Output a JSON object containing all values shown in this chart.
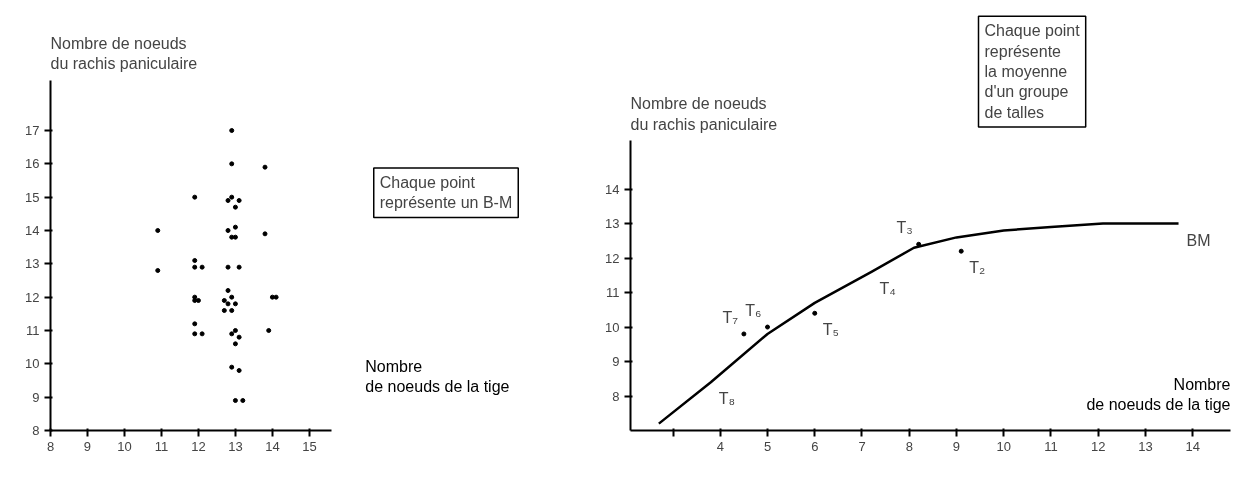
{
  "chart_data": [
    {
      "type": "scatter",
      "xlabel": "Nombre\nde noeuds de la tige",
      "ylabel": "Nombre de noeuds\ndu rachis paniculaire",
      "annotations": [
        "Chaque point\nreprésente un B-M"
      ],
      "series": [
        {
          "color": "#000000",
          "x": [
            10.9,
            10.9,
            11.9,
            11.9,
            11.9,
            12.1,
            11.9,
            11.9,
            12.0,
            11.9,
            11.9,
            12.1,
            12.9,
            12.9,
            12.8,
            12.9,
            13.1,
            13.0,
            12.8,
            13.0,
            13.0,
            12.9,
            12.8,
            13.1,
            12.8,
            12.9,
            12.7,
            12.8,
            13.0,
            12.7,
            12.9,
            13.0,
            12.9,
            13.1,
            13.0,
            12.9,
            13.1,
            13.0,
            13.2,
            13.8,
            13.8,
            14.0,
            14.1,
            13.9
          ],
          "values": [
            14.0,
            12.8,
            15.0,
            13.1,
            12.9,
            12.9,
            12.0,
            11.9,
            11.9,
            11.2,
            10.9,
            10.9,
            17.0,
            16.0,
            14.9,
            15.0,
            14.9,
            14.7,
            14.0,
            14.1,
            13.8,
            13.8,
            12.9,
            12.9,
            12.2,
            12.0,
            11.9,
            11.8,
            11.8,
            11.6,
            11.6,
            11.0,
            10.9,
            10.8,
            10.6,
            9.9,
            9.8,
            8.9,
            8.9,
            15.9,
            13.9,
            12.0,
            12.0,
            11.0
          ]
        }
      ],
      "xlim": [
        8,
        15.6
      ],
      "ylim": [
        8,
        18.5
      ],
      "xticks": [
        8,
        9,
        10,
        11,
        12,
        13,
        14,
        15
      ],
      "yticks": [
        8,
        9,
        10,
        11,
        12,
        13,
        14,
        15,
        16,
        17
      ],
      "grid": false,
      "marker": "circle"
    },
    {
      "type": "line",
      "xlabel": "Nombre\nde noeuds de la tige",
      "ylabel": "Nombre de noeuds\ndu rachis paniculaire",
      "annotations": [
        "Chaque point\nreprésente\nla moyenne\nd'un groupe\nde talles",
        {
          "text": "T₂",
          "x": 9.1,
          "y": 12.2
        },
        {
          "text": "T₃",
          "x": 8.2,
          "y": 12.4
        },
        {
          "text": "T₄",
          "x": 7.2,
          "y": 11.6
        },
        {
          "text": "T₅",
          "x": 6.0,
          "y": 10.4
        },
        {
          "text": "T₆",
          "x": 5.0,
          "y": 10.0
        },
        {
          "text": "T₇",
          "x": 4.5,
          "y": 9.8
        },
        {
          "text": "T₈",
          "x": 3.8,
          "y": 8.4
        },
        {
          "text": "BM",
          "x": 13.7,
          "y": 13.0
        }
      ],
      "series": [
        {
          "type": "line",
          "color": "#000000",
          "marker": "none",
          "x": [
            2.7,
            3.8,
            5.0,
            6.0,
            7.2,
            8.1,
            9.0,
            10.0,
            11.0,
            12.1,
            13.7
          ],
          "values": [
            7.2,
            8.4,
            9.8,
            10.7,
            11.6,
            12.3,
            12.6,
            12.8,
            12.9,
            13.0,
            13.0
          ]
        },
        {
          "type": "scatter",
          "color": "#000000",
          "x": [
            9.1,
            8.2,
            6.0,
            5.0,
            4.5
          ],
          "values": [
            12.2,
            12.4,
            10.4,
            10.0,
            9.8
          ]
        }
      ],
      "xlim": [
        2.1,
        14.8
      ],
      "ylim": [
        7,
        15.4
      ],
      "xticks": [
        {
          "value": 3,
          "label": null
        },
        4,
        5,
        6,
        7,
        8,
        9,
        10,
        11,
        12,
        13,
        14
      ],
      "yticks": [
        8,
        9,
        10,
        11,
        12,
        13,
        14
      ],
      "grid": false,
      "marker": "circle",
      "line_style": "solid"
    }
  ]
}
